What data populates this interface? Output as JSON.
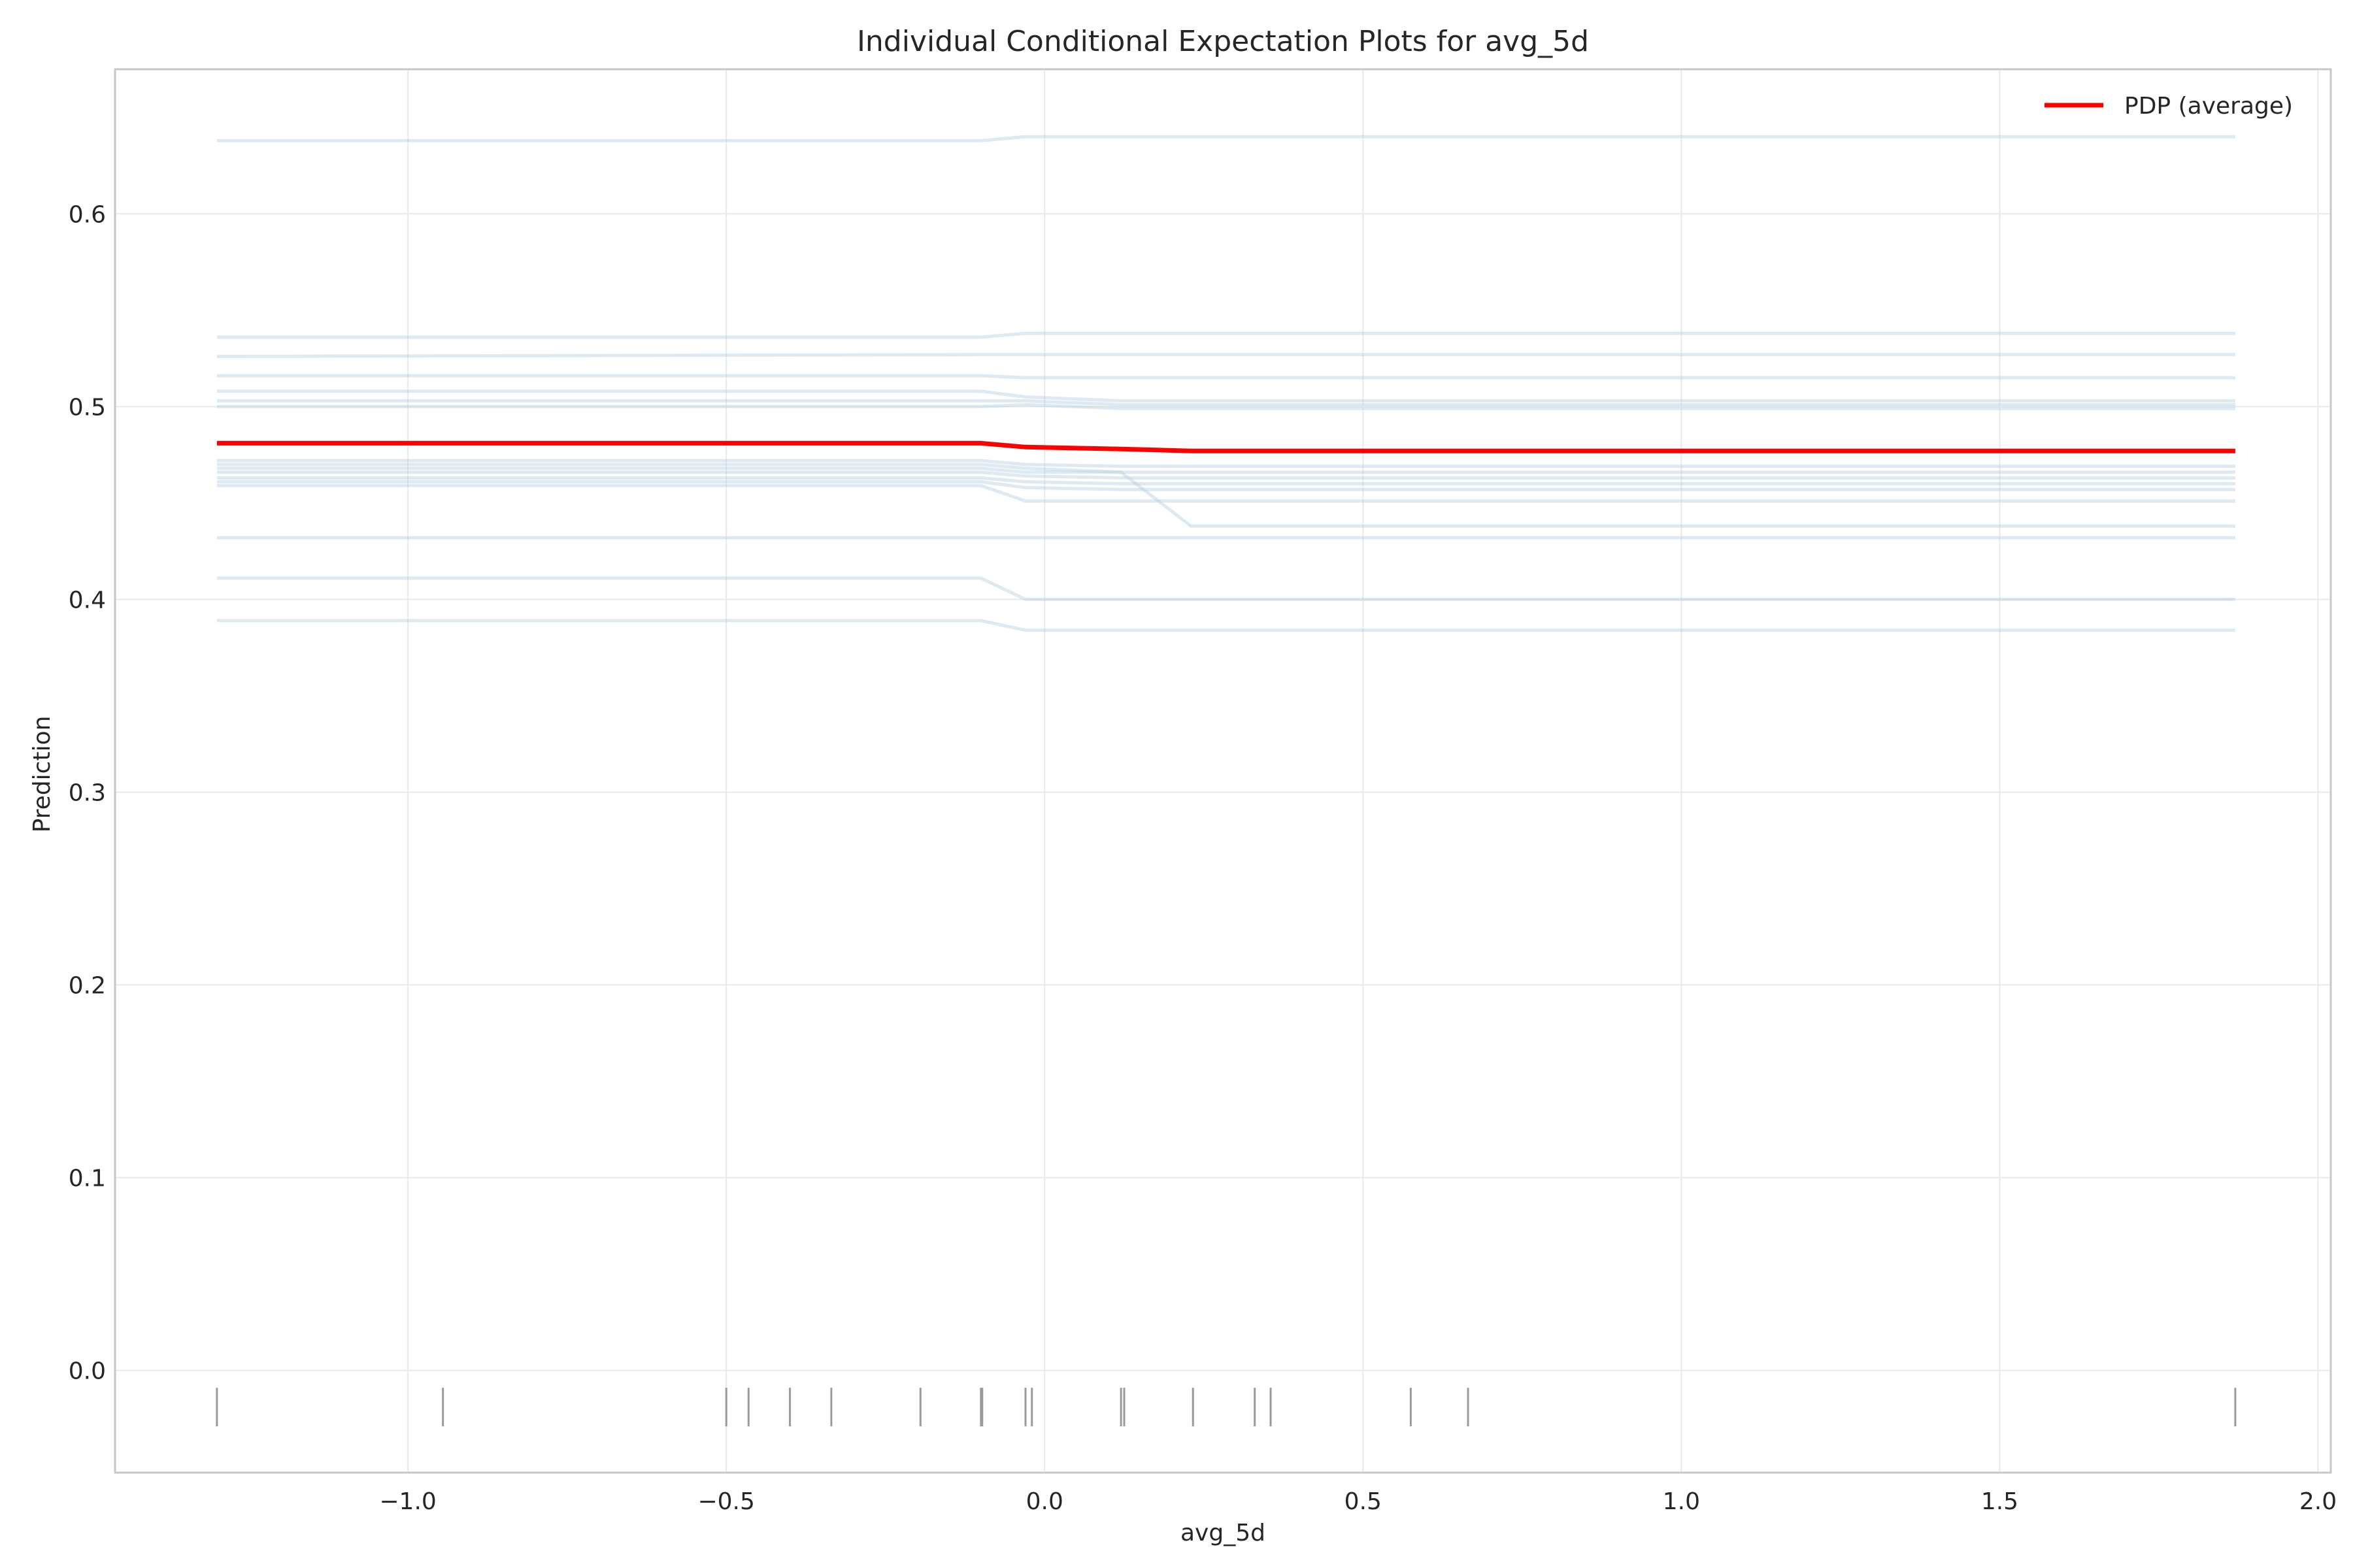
{
  "chart_data": {
    "type": "line",
    "title": "Individual Conditional Expectation Plots for avg_5d",
    "xlabel": "avg_5d",
    "ylabel": "Prediction",
    "xlim": [
      -1.46,
      2.02
    ],
    "ylim": [
      -0.053,
      0.675
    ],
    "xticks": [
      -1.0,
      -0.5,
      0.0,
      0.5,
      1.0,
      1.5,
      2.0
    ],
    "xtick_labels": [
      "−1.0",
      "−0.5",
      "0.0",
      "0.5",
      "1.0",
      "1.5",
      "2.0"
    ],
    "yticks": [
      0.0,
      0.1,
      0.2,
      0.3,
      0.4,
      0.5,
      0.6
    ],
    "ytick_labels": [
      "0.0",
      "0.1",
      "0.2",
      "0.3",
      "0.4",
      "0.5",
      "0.6"
    ],
    "grid": true,
    "legend": {
      "position": "top-right",
      "entries": [
        "PDP (average)"
      ]
    },
    "colors": {
      "pdp": "#ff0000",
      "ice": "#b6cfe3",
      "rug": "#9a9a9a"
    },
    "x": [
      -1.3,
      -0.1,
      -0.03,
      0.12,
      0.23,
      1.87
    ],
    "ice_series": [
      [
        0.638,
        0.638,
        0.64,
        0.64,
        0.64,
        0.64
      ],
      [
        0.536,
        0.536,
        0.538,
        0.538,
        0.538,
        0.538
      ],
      [
        0.526,
        0.527,
        0.527,
        0.527,
        0.527,
        0.527
      ],
      [
        0.516,
        0.516,
        0.515,
        0.515,
        0.515,
        0.515
      ],
      [
        0.508,
        0.508,
        0.505,
        0.503,
        0.503,
        0.503
      ],
      [
        0.503,
        0.503,
        0.503,
        0.501,
        0.501,
        0.501
      ],
      [
        0.5,
        0.5,
        0.501,
        0.499,
        0.499,
        0.499
      ],
      [
        0.472,
        0.472,
        0.47,
        0.469,
        0.469,
        0.469
      ],
      [
        0.468,
        0.468,
        0.466,
        0.466,
        0.466,
        0.466
      ],
      [
        0.466,
        0.466,
        0.464,
        0.463,
        0.463,
        0.463
      ],
      [
        0.463,
        0.463,
        0.461,
        0.46,
        0.46,
        0.46
      ],
      [
        0.461,
        0.461,
        0.458,
        0.457,
        0.457,
        0.457
      ],
      [
        0.459,
        0.459,
        0.451,
        0.451,
        0.451,
        0.451
      ],
      [
        0.47,
        0.47,
        0.468,
        0.466,
        0.438,
        0.438
      ],
      [
        0.432,
        0.432,
        0.432,
        0.432,
        0.432,
        0.432
      ],
      [
        0.411,
        0.411,
        0.4,
        0.4,
        0.4,
        0.4
      ],
      [
        0.389,
        0.389,
        0.384,
        0.384,
        0.384,
        0.384
      ]
    ],
    "series": [
      {
        "name": "PDP (average)",
        "values": [
          0.481,
          0.481,
          0.479,
          0.478,
          0.477,
          0.477
        ]
      }
    ],
    "rug_x": [
      -1.3,
      -0.945,
      -0.5,
      -0.465,
      -0.4,
      -0.335,
      -0.195,
      -0.1,
      -0.098,
      -0.03,
      -0.02,
      0.12,
      0.125,
      0.233,
      0.33,
      0.355,
      0.575,
      0.665,
      1.87
    ]
  }
}
